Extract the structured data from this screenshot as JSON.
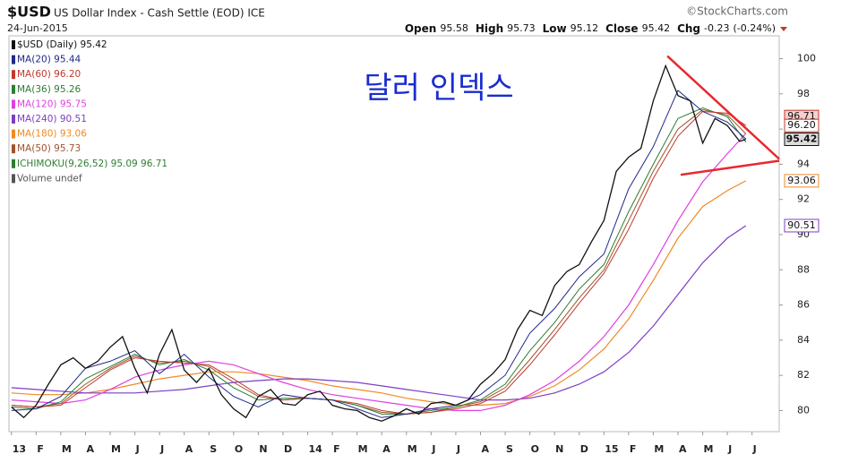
{
  "chart_data": {
    "type": "line",
    "symbol": "$USD",
    "title": "US Dollar Index - Cash Settle (EOD) ICE",
    "source": "©StockCharts.com",
    "date": "24-Jun-2015",
    "quote": [
      {
        "label": "Open",
        "value": 95.58
      },
      {
        "label": "High",
        "value": 95.73
      },
      {
        "label": "Low",
        "value": 95.12
      },
      {
        "label": "Close",
        "value": 95.42
      },
      {
        "label": "Chg",
        "value": -0.23
      }
    ],
    "chg_pct": {
      "value": -0.24,
      "label": "(-0.24%)"
    },
    "annotation": "달러 인덱스",
    "xlim": [
      -0.1,
      31.1
    ],
    "ylim": [
      78.8,
      101.3
    ],
    "yticks": [
      80,
      82,
      84,
      86,
      88,
      90,
      92,
      94,
      96,
      98,
      100
    ],
    "xticks": [
      {
        "value": 0,
        "label": "13"
      },
      {
        "value": 1,
        "label": "F"
      },
      {
        "value": 2,
        "label": "M"
      },
      {
        "value": 3,
        "label": "A"
      },
      {
        "value": 4,
        "label": "M"
      },
      {
        "value": 5,
        "label": "J"
      },
      {
        "value": 6,
        "label": "J"
      },
      {
        "value": 7,
        "label": "A"
      },
      {
        "value": 8,
        "label": "S"
      },
      {
        "value": 9,
        "label": "O"
      },
      {
        "value": 10,
        "label": "N"
      },
      {
        "value": 11,
        "label": "D"
      },
      {
        "value": 12,
        "label": "14"
      },
      {
        "value": 13,
        "label": "F"
      },
      {
        "value": 14,
        "label": "M"
      },
      {
        "value": 15,
        "label": "A"
      },
      {
        "value": 16,
        "label": "M"
      },
      {
        "value": 17,
        "label": "J"
      },
      {
        "value": 18,
        "label": "J"
      },
      {
        "value": 19,
        "label": "A"
      },
      {
        "value": 20,
        "label": "S"
      },
      {
        "value": 21,
        "label": "O"
      },
      {
        "value": 22,
        "label": "N"
      },
      {
        "value": 23,
        "label": "D"
      },
      {
        "value": 24,
        "label": "15"
      },
      {
        "value": 25,
        "label": "F"
      },
      {
        "value": 26,
        "label": "M"
      },
      {
        "value": 27,
        "label": "A"
      },
      {
        "value": 28,
        "label": "M"
      },
      {
        "value": 29,
        "label": "J"
      },
      {
        "value": 30,
        "label": "J"
      }
    ],
    "grid": false,
    "x": [
      0,
      1,
      2,
      3,
      4,
      5,
      6,
      7,
      8,
      9,
      10,
      11,
      12,
      13,
      14,
      15,
      16,
      17,
      18,
      19,
      20,
      21,
      22,
      23,
      24,
      25,
      26,
      27,
      28,
      29,
      29.75
    ],
    "series": [
      {
        "name": "$USD (Daily) 95.42",
        "color": "#111111",
        "width": 1.3,
        "x": [
          0,
          0.5,
          1,
          1.5,
          2,
          2.5,
          3,
          3.5,
          4,
          4.5,
          5,
          5.5,
          6,
          6.5,
          7,
          7.5,
          8,
          8.5,
          9,
          9.5,
          10,
          10.5,
          11,
          11.5,
          12,
          12.5,
          13,
          13.5,
          14,
          14.5,
          15,
          15.5,
          16,
          16.5,
          17,
          17.5,
          18,
          18.5,
          19,
          19.5,
          20,
          20.5,
          21,
          21.5,
          22,
          22.5,
          23,
          23.5,
          24,
          24.5,
          25,
          25.5,
          26,
          26.5,
          27,
          27.5,
          28,
          28.5,
          29,
          29.5,
          29.75
        ],
        "values": [
          80.2,
          79.6,
          80.3,
          81.5,
          82.6,
          83.0,
          82.4,
          82.8,
          83.6,
          84.2,
          82.4,
          81.0,
          83.2,
          84.6,
          82.3,
          81.6,
          82.4,
          80.9,
          80.1,
          79.6,
          80.8,
          81.2,
          80.4,
          80.3,
          80.9,
          81.1,
          80.3,
          80.1,
          80.0,
          79.6,
          79.4,
          79.7,
          80.1,
          79.8,
          80.4,
          80.5,
          80.3,
          80.6,
          81.5,
          82.1,
          82.9,
          84.6,
          85.7,
          85.4,
          87.1,
          87.9,
          88.3,
          89.6,
          90.8,
          93.6,
          94.4,
          94.9,
          97.6,
          99.6,
          97.9,
          97.6,
          95.2,
          96.6,
          96.2,
          95.3,
          95.42
        ]
      },
      {
        "name": "MA(20) 95.44",
        "color": "#1f2a8a",
        "width": 1,
        "values": [
          80.0,
          80.1,
          80.8,
          82.4,
          82.8,
          83.4,
          82.1,
          83.2,
          81.9,
          80.8,
          80.2,
          80.9,
          80.7,
          80.6,
          80.1,
          79.6,
          79.8,
          80.1,
          80.3,
          80.9,
          82.0,
          84.4,
          85.8,
          87.6,
          88.9,
          92.6,
          95.0,
          98.2,
          97.0,
          96.4,
          95.44
        ]
      },
      {
        "name": "MA(60) 96.20",
        "color": "#c0392b",
        "width": 1,
        "values": [
          80.3,
          80.2,
          80.3,
          81.3,
          82.3,
          83.0,
          82.8,
          82.7,
          82.6,
          81.8,
          80.9,
          80.6,
          80.7,
          80.6,
          80.4,
          80.0,
          79.8,
          79.9,
          80.1,
          80.4,
          81.1,
          82.6,
          84.3,
          86.1,
          87.8,
          90.3,
          93.2,
          95.6,
          97.0,
          96.9,
          96.2
        ]
      },
      {
        "name": "MA(36) 95.26",
        "color": "#2e7d32",
        "width": 1,
        "values": [
          80.2,
          80.1,
          80.5,
          81.8,
          82.5,
          83.2,
          82.6,
          82.9,
          82.3,
          81.3,
          80.6,
          80.7,
          80.7,
          80.6,
          80.3,
          79.8,
          79.8,
          80.0,
          80.2,
          80.6,
          81.5,
          83.4,
          85.0,
          86.9,
          88.3,
          91.3,
          94.0,
          96.6,
          97.2,
          96.7,
          95.26
        ]
      },
      {
        "name": "MA(120) 95.75",
        "color": "#e040e0",
        "width": 1.2,
        "values": [
          80.6,
          80.5,
          80.4,
          80.6,
          81.2,
          81.9,
          82.3,
          82.6,
          82.8,
          82.6,
          82.1,
          81.6,
          81.2,
          80.9,
          80.7,
          80.5,
          80.3,
          80.1,
          80.0,
          80.0,
          80.3,
          80.9,
          81.7,
          82.8,
          84.2,
          86.0,
          88.3,
          90.8,
          93.0,
          94.6,
          95.75
        ]
      },
      {
        "name": "MA(240) 90.51",
        "color": "#7b3fc4",
        "width": 1.2,
        "values": [
          81.3,
          81.2,
          81.1,
          81.0,
          81.0,
          81.0,
          81.1,
          81.2,
          81.4,
          81.6,
          81.7,
          81.8,
          81.8,
          81.7,
          81.6,
          81.4,
          81.2,
          81.0,
          80.8,
          80.6,
          80.6,
          80.7,
          81.0,
          81.5,
          82.2,
          83.3,
          84.8,
          86.6,
          88.4,
          89.8,
          90.51
        ]
      },
      {
        "name": "MA(180) 93.06",
        "color": "#f08a24",
        "width": 1.2,
        "values": [
          81.0,
          80.9,
          80.9,
          81.0,
          81.2,
          81.5,
          81.8,
          82.0,
          82.2,
          82.2,
          82.1,
          81.9,
          81.7,
          81.4,
          81.2,
          81.0,
          80.7,
          80.5,
          80.3,
          80.3,
          80.4,
          80.8,
          81.4,
          82.3,
          83.5,
          85.2,
          87.4,
          89.8,
          91.6,
          92.5,
          93.06
        ]
      },
      {
        "name": "MA(50) 95.73",
        "color": "#a0522d",
        "width": 1,
        "values": [
          80.3,
          80.2,
          80.4,
          81.5,
          82.4,
          83.1,
          82.7,
          82.8,
          82.5,
          81.6,
          80.8,
          80.6,
          80.7,
          80.6,
          80.3,
          79.9,
          79.8,
          79.9,
          80.2,
          80.5,
          81.3,
          82.9,
          84.6,
          86.4,
          88.0,
          90.8,
          93.6,
          96.0,
          97.1,
          96.8,
          95.73
        ]
      }
    ],
    "overlays": [
      {
        "name": "ICHIMOKU(9,26,52) 95.09 96.71",
        "color": "#2e7d32"
      },
      {
        "name": "Volume undef",
        "color": "#555555"
      }
    ],
    "price_tags": [
      {
        "value": 96.71,
        "label": "96.71",
        "color": "#c0392b",
        "fill": "#f6d0d0"
      },
      {
        "value": 96.2,
        "label": "96.20",
        "color": "#c0392b",
        "fill": "#ffffff"
      },
      {
        "value": 95.42,
        "label": "95.42",
        "color": "#111111",
        "fill": "#dddddd"
      },
      {
        "value": 93.06,
        "label": "93.06",
        "color": "#f08a24",
        "fill": "#ffffff"
      },
      {
        "value": 90.51,
        "label": "90.51",
        "color": "#7b3fc4",
        "fill": "#ffffff"
      }
    ],
    "trendlines": [
      {
        "color": "#e8282d",
        "x": [
          26.57,
          31.1
        ],
        "y": [
          100.15,
          94.3
        ]
      },
      {
        "color": "#e8282d",
        "x": [
          27.11,
          31.1
        ],
        "y": [
          93.4,
          94.2
        ]
      }
    ]
  }
}
